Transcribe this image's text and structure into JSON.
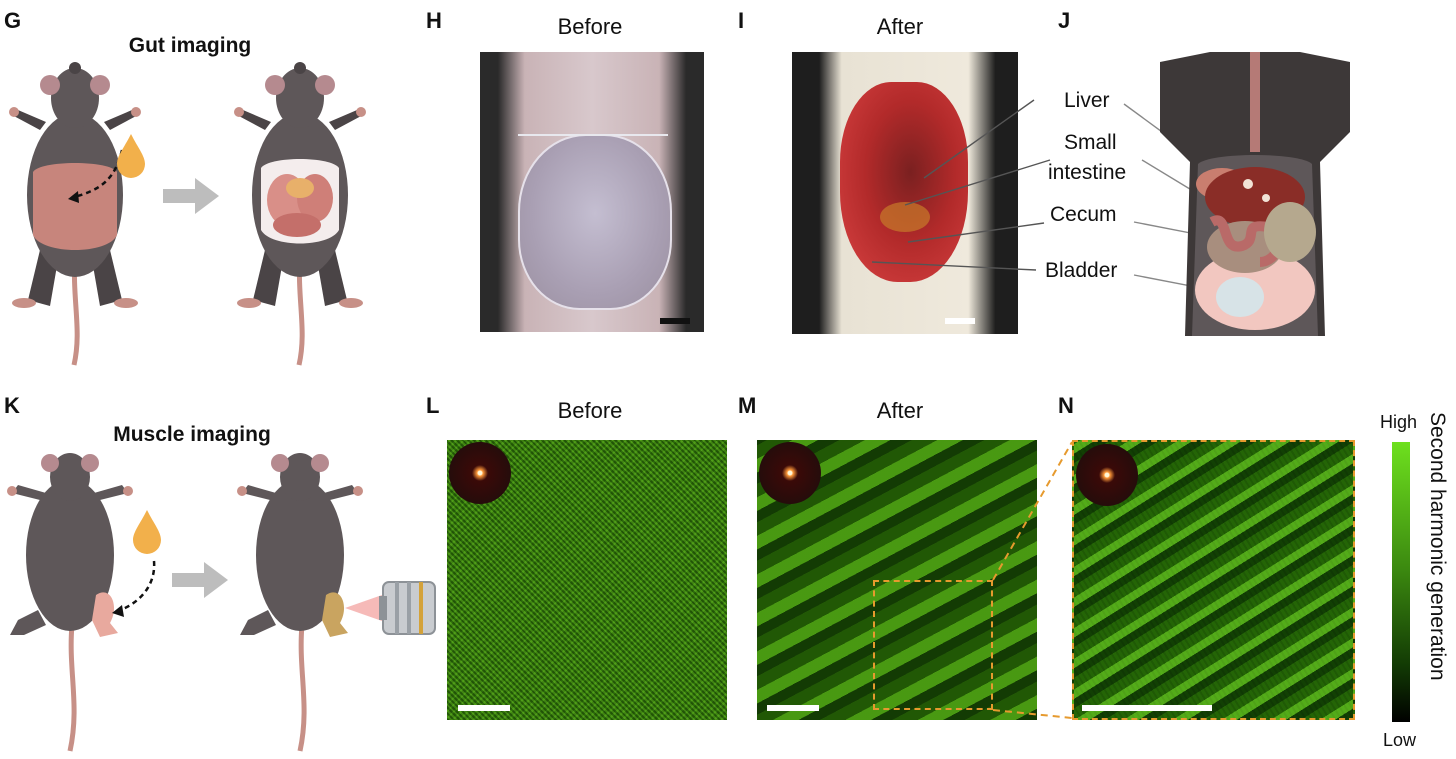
{
  "panels": {
    "G": {
      "label": "G",
      "title": "Gut imaging"
    },
    "H": {
      "label": "H",
      "title": "Before"
    },
    "I": {
      "label": "I",
      "title": "After"
    },
    "J": {
      "label": "J",
      "organs": [
        "Liver",
        "Small",
        "intestine",
        "Cecum",
        "Bladder"
      ]
    },
    "K": {
      "label": "K",
      "title": "Muscle imaging"
    },
    "L": {
      "label": "L",
      "title": "Before"
    },
    "M": {
      "label": "M",
      "title": "After"
    },
    "N": {
      "label": "N"
    }
  },
  "colorbar": {
    "high": "High",
    "low": "Low",
    "title": "Second harmonic generation"
  },
  "colors": {
    "mouse_body": "#5e5759",
    "tail": "#c79087",
    "gut": "#c7857c",
    "shg_green": "#3c8a10",
    "inset_box": "#e69a2e",
    "arrow_gray": "#bdbdbd",
    "drop": "#f2b04b"
  }
}
